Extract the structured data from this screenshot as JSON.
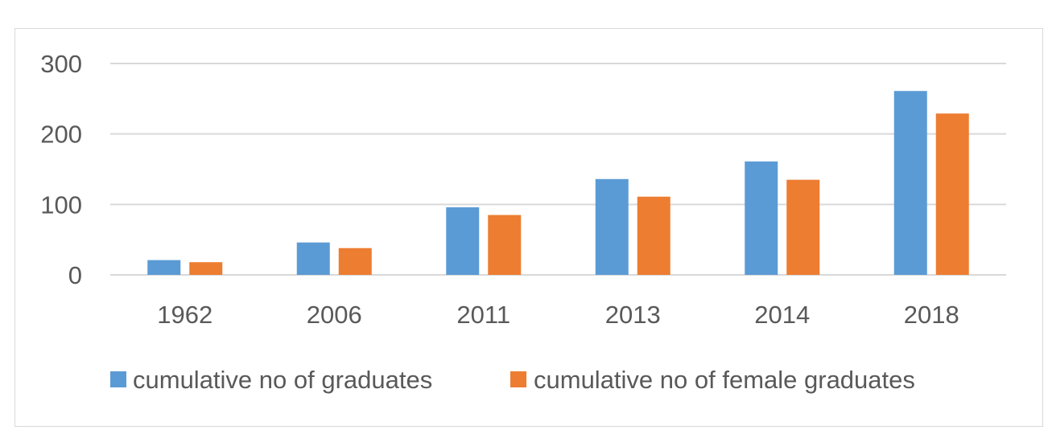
{
  "chart_data": {
    "type": "bar",
    "categories": [
      "1962",
      "2006",
      "2011",
      "2013",
      "2014",
      "2018"
    ],
    "series": [
      {
        "name": "cumulative no of graduates",
        "color": "#5b9bd5",
        "values": [
          21,
          46,
          96,
          136,
          161,
          261
        ]
      },
      {
        "name": "cumulative no of female graduates",
        "color": "#ed7d31",
        "values": [
          18,
          38,
          85,
          111,
          135,
          229
        ]
      }
    ],
    "title": "",
    "xlabel": "",
    "ylabel": "",
    "ylim": [
      0,
      300
    ],
    "yticks": [
      0,
      100,
      200,
      300
    ],
    "grid": true,
    "legend_position": "bottom"
  }
}
